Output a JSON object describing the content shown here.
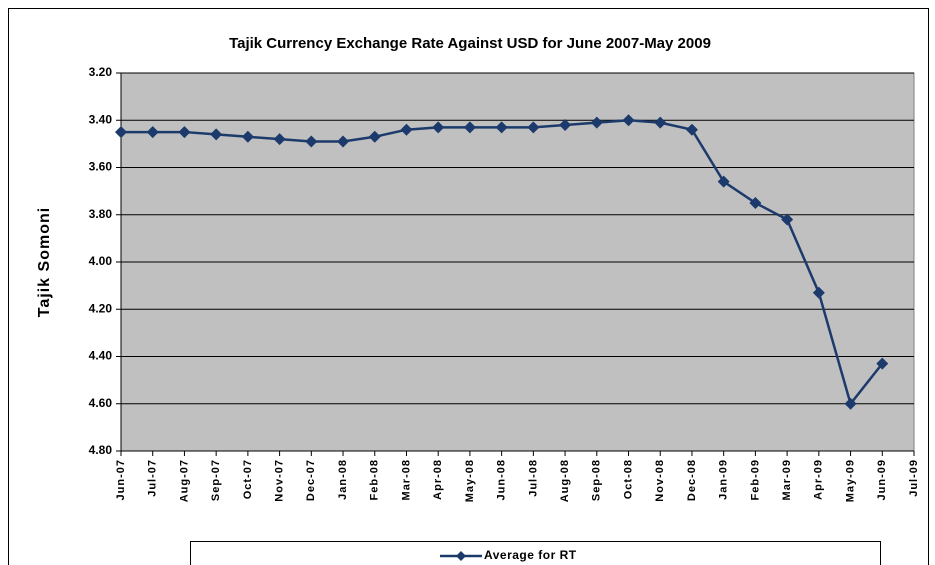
{
  "chart_data": {
    "type": "line",
    "title": "Tajik Currency Exchange Rate Against USD for June 2007-May 2009",
    "y_label": "Tajik Somoni",
    "categories": [
      "Jun-07",
      "Jul-07",
      "Aug-07",
      "Sep-07",
      "Oct-07",
      "Nov-07",
      "Dec-07",
      "Jan-08",
      "Feb-08",
      "Mar-08",
      "Apr-08",
      "May-08",
      "Jun-08",
      "Jul-08",
      "Aug-08",
      "Sep-08",
      "Oct-08",
      "Nov-08",
      "Dec-08",
      "Jan-09",
      "Feb-09",
      "Mar-09",
      "Apr-09",
      "May-09",
      "Jun-09",
      "Jul-09"
    ],
    "series": [
      {
        "name": "Average for RT",
        "color": "#1c3a6b",
        "values": [
          3.45,
          3.45,
          3.45,
          3.46,
          3.47,
          3.48,
          3.49,
          3.49,
          3.47,
          3.44,
          3.43,
          3.43,
          3.43,
          3.43,
          3.42,
          3.41,
          3.4,
          3.41,
          3.44,
          3.66,
          3.75,
          3.82,
          4.13,
          4.6,
          4.43,
          null
        ]
      }
    ],
    "ylim": [
      3.2,
      4.8
    ],
    "yticks": [
      {
        "value": 3.2,
        "label": "3.20"
      },
      {
        "value": 3.4,
        "label": "3.40"
      },
      {
        "value": 3.6,
        "label": "3.60"
      },
      {
        "value": 3.8,
        "label": "3.80"
      },
      {
        "value": 4.0,
        "label": "4.00"
      },
      {
        "value": 4.2,
        "label": "4.20"
      },
      {
        "value": 4.4,
        "label": "4.40"
      },
      {
        "value": 4.6,
        "label": "4.60"
      },
      {
        "value": 4.8,
        "label": "4.80"
      }
    ],
    "y_reversed": true,
    "grid": true,
    "plot_background": "#c0c0c0",
    "legend": "bottom"
  }
}
